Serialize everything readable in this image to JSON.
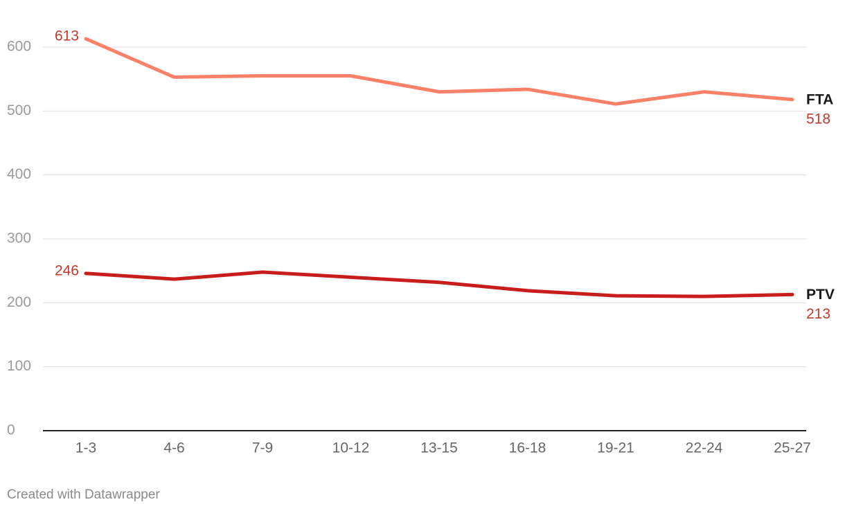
{
  "chart_data": {
    "type": "line",
    "categories": [
      "1-3",
      "4-6",
      "7-9",
      "10-12",
      "13-15",
      "16-18",
      "19-21",
      "22-24",
      "25-27"
    ],
    "series": [
      {
        "name": "FTA",
        "color": "#fa8068",
        "values": [
          613,
          553,
          555,
          555,
          530,
          534,
          511,
          530,
          518
        ]
      },
      {
        "name": "PTV",
        "color": "#c71e1d",
        "values": [
          246,
          237,
          248,
          240,
          232,
          219,
          211,
          210,
          213
        ]
      }
    ],
    "ylim": [
      0,
      600
    ],
    "yticks": [
      0,
      100,
      200,
      300,
      400,
      500,
      600
    ],
    "grid": true,
    "credit": "Created with Datawrapper"
  }
}
